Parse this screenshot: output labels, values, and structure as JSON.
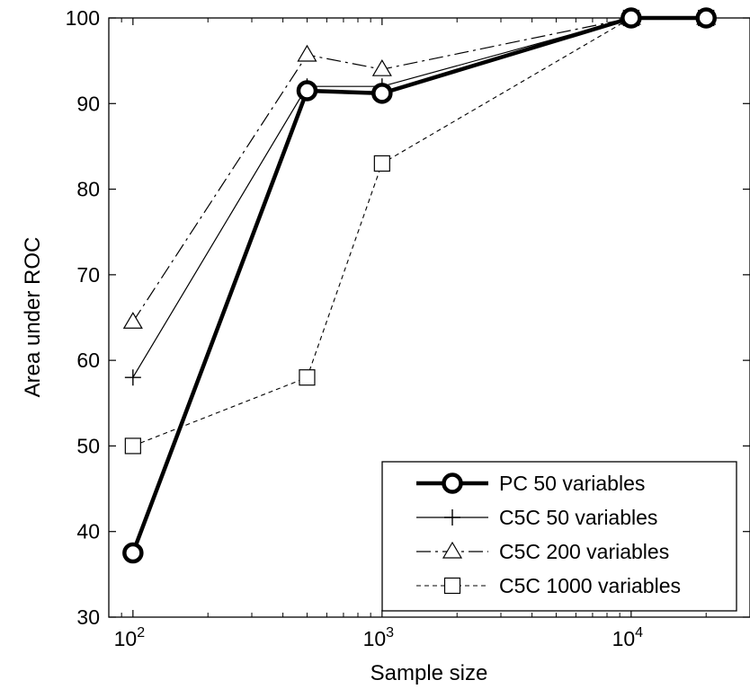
{
  "chart_data": {
    "type": "line",
    "xscale": "log",
    "xlabel": "Sample size",
    "ylabel": "Area under ROC",
    "xlim": [
      80,
      30000
    ],
    "ylim": [
      30,
      100
    ],
    "x_ticks": [
      {
        "value": 100,
        "base": "10",
        "exp": "2"
      },
      {
        "value": 1000,
        "base": "10",
        "exp": "3"
      },
      {
        "value": 10000,
        "base": "10",
        "exp": "4"
      }
    ],
    "y_ticks": [
      "30",
      "40",
      "50",
      "60",
      "70",
      "80",
      "90",
      "100"
    ],
    "x": [
      100,
      500,
      1000,
      10000,
      20000
    ],
    "grid": false,
    "legend_position": "bottom-right",
    "series": [
      {
        "name": "PC 50 variables",
        "marker": "circle",
        "line_style": "solid-bold",
        "values": [
          37.5,
          91.5,
          91.2,
          100,
          100
        ]
      },
      {
        "name": "C5C 50 variables",
        "marker": "plus",
        "line_style": "solid",
        "values": [
          58,
          92,
          92,
          100,
          100
        ]
      },
      {
        "name": "C5C 200 variables",
        "marker": "triangle",
        "line_style": "dash-dot",
        "values": [
          64.5,
          95.7,
          94,
          100,
          100
        ]
      },
      {
        "name": "C5C 1000 variables",
        "marker": "square",
        "line_style": "dashed",
        "values": [
          50,
          58,
          83,
          100,
          100
        ]
      }
    ]
  }
}
